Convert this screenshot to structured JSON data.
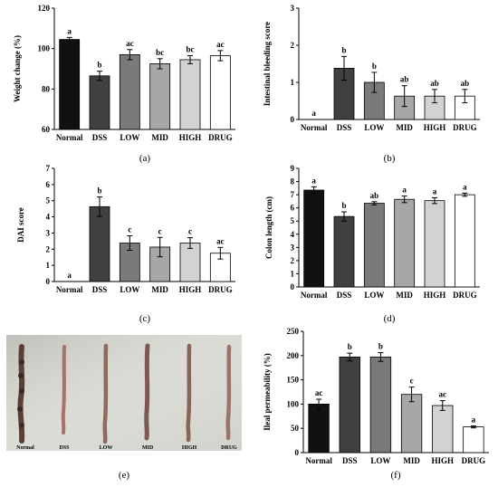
{
  "figure": {
    "groups": [
      "Normal",
      "DSS",
      "LOW",
      "MID",
      "HIGH",
      "DRUG"
    ],
    "bar_colors": [
      "#111111",
      "#404040",
      "#7a7a7a",
      "#a7a7a7",
      "#d2d2d2",
      "#ffffff"
    ]
  },
  "photo": {
    "label": "(e)",
    "group_labels": [
      "Normal",
      "DSS",
      "LOW",
      "MID",
      "HIGH",
      "DRUG"
    ]
  },
  "chart_data": [
    {
      "id": "a",
      "type": "bar",
      "label": "(a)",
      "categories": [
        "Normal",
        "DSS",
        "LOW",
        "MID",
        "HIGH",
        "DRUG"
      ],
      "values": [
        104.5,
        86.5,
        97,
        92.5,
        94.5,
        96.5
      ],
      "errors": [
        1,
        2.3,
        2.5,
        2.5,
        2,
        2.5
      ],
      "significance": [
        "a",
        "b",
        "ac",
        "bc",
        "bc",
        "ac"
      ],
      "ylabel": "Weight change (%)",
      "ylim": [
        60,
        120
      ],
      "yticks": [
        60,
        80,
        100,
        120
      ]
    },
    {
      "id": "b",
      "type": "bar",
      "label": "(b)",
      "categories": [
        "Normal",
        "DSS",
        "LOW",
        "MID",
        "HIGH",
        "DRUG"
      ],
      "values": [
        0,
        1.38,
        1.0,
        0.63,
        0.63,
        0.63
      ],
      "errors": [
        0,
        0.32,
        0.27,
        0.28,
        0.18,
        0.18
      ],
      "significance": [
        "a",
        "b",
        "b",
        "ab",
        "ab",
        "ab"
      ],
      "ylabel": "Intestinal bleeding score",
      "ylim": [
        0,
        3
      ],
      "yticks": [
        0,
        1,
        2,
        3
      ]
    },
    {
      "id": "c",
      "type": "bar",
      "label": "(c)",
      "categories": [
        "Normal",
        "DSS",
        "LOW",
        "MID",
        "HIGH",
        "DRUG"
      ],
      "values": [
        0,
        4.63,
        2.38,
        2.13,
        2.38,
        1.75
      ],
      "errors": [
        0,
        0.6,
        0.45,
        0.6,
        0.33,
        0.36
      ],
      "significance": [
        "a",
        "b",
        "c",
        "c",
        "c",
        "ac"
      ],
      "ylabel": "DAI score",
      "ylim": [
        0,
        7
      ],
      "yticks": [
        0,
        1,
        2,
        3,
        4,
        5,
        6,
        7
      ]
    },
    {
      "id": "d",
      "type": "bar",
      "label": "(d)",
      "categories": [
        "Normal",
        "DSS",
        "LOW",
        "MID",
        "HIGH",
        "DRUG"
      ],
      "values": [
        7.35,
        5.35,
        6.35,
        6.65,
        6.55,
        7.0
      ],
      "errors": [
        0.25,
        0.35,
        0.12,
        0.25,
        0.22,
        0.12
      ],
      "significance": [
        "a",
        "b",
        "ab",
        "a",
        "a",
        "a"
      ],
      "ylabel": "Colon length (cm)",
      "ylim": [
        0,
        9
      ],
      "yticks": [
        0,
        1,
        2,
        3,
        4,
        5,
        6,
        7,
        8,
        9
      ]
    },
    {
      "id": "f",
      "type": "bar",
      "label": "(f)",
      "categories": [
        "Normal",
        "DSS",
        "LOW",
        "MID",
        "HIGH",
        "DRUG"
      ],
      "values": [
        100,
        197,
        197,
        120,
        97,
        53
      ],
      "errors": [
        10,
        8,
        9,
        15,
        10,
        2
      ],
      "significance": [
        "ac",
        "b",
        "b",
        "c",
        "ac",
        "a"
      ],
      "ylabel": "Ileal permeability (%)",
      "ylim": [
        0,
        250
      ],
      "yticks": [
        0,
        50,
        100,
        150,
        200,
        250
      ]
    }
  ]
}
